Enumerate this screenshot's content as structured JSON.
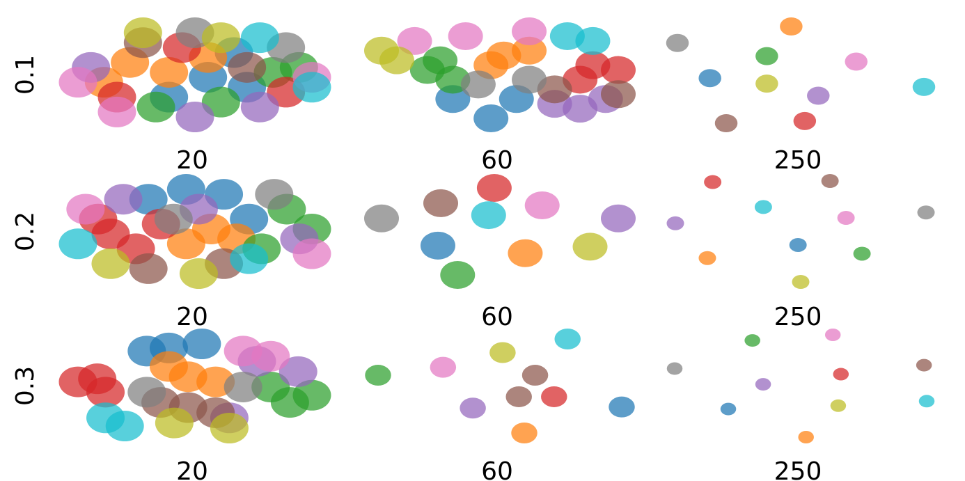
{
  "chart_data": [
    {
      "type": "scatter",
      "ylabel": "0.1",
      "xlabel": "20",
      "marker_size": 22,
      "series": [
        {
          "color": "#1f77b4",
          "x": [
            55,
            70,
            40,
            65
          ],
          "y": [
            50,
            40,
            30,
            75
          ]
        },
        {
          "color": "#ff7f0e",
          "x": [
            25,
            40,
            55,
            15
          ],
          "y": [
            65,
            55,
            70,
            45
          ]
        },
        {
          "color": "#2ca02c",
          "x": [
            80,
            35,
            60,
            90
          ],
          "y": [
            55,
            20,
            25,
            60
          ]
        },
        {
          "color": "#d62728",
          "x": [
            20,
            85,
            45
          ],
          "y": [
            30,
            35,
            80
          ]
        },
        {
          "color": "#9467bd",
          "x": [
            10,
            75,
            50
          ],
          "y": [
            60,
            20,
            10
          ]
        },
        {
          "color": "#8c564b",
          "x": [
            30,
            70
          ],
          "y": [
            85,
            60
          ]
        },
        {
          "color": "#e377c2",
          "x": [
            5,
            20,
            95
          ],
          "y": [
            45,
            15,
            50
          ]
        },
        {
          "color": "#7f7f7f",
          "x": [
            50,
            85
          ],
          "y": [
            95,
            80
          ]
        },
        {
          "color": "#bcbd22",
          "x": [
            30,
            60
          ],
          "y": [
            95,
            90
          ]
        },
        {
          "color": "#17becf",
          "x": [
            75,
            95
          ],
          "y": [
            90,
            40
          ]
        }
      ]
    },
    {
      "type": "scatter",
      "xlabel": "60",
      "marker_size": 20,
      "series": [
        {
          "color": "#1f77b4",
          "x": [
            30,
            45,
            55
          ],
          "y": [
            25,
            5,
            25
          ]
        },
        {
          "color": "#ff7f0e",
          "x": [
            50,
            60,
            45
          ],
          "y": [
            70,
            75,
            60
          ]
        },
        {
          "color": "#2ca02c",
          "x": [
            20,
            30,
            25
          ],
          "y": [
            55,
            45,
            65
          ]
        },
        {
          "color": "#d62728",
          "x": [
            85,
            95,
            80
          ],
          "y": [
            60,
            55,
            45
          ]
        },
        {
          "color": "#9467bd",
          "x": [
            80,
            90,
            70
          ],
          "y": [
            15,
            25,
            20
          ]
        },
        {
          "color": "#8c564b",
          "x": [
            70,
            95
          ],
          "y": [
            35,
            30
          ]
        },
        {
          "color": "#e377c2",
          "x": [
            35,
            60,
            15
          ],
          "y": [
            90,
            95,
            85
          ]
        },
        {
          "color": "#7f7f7f",
          "x": [
            60,
            40
          ],
          "y": [
            45,
            40
          ]
        },
        {
          "color": "#bcbd22",
          "x": [
            2,
            8
          ],
          "y": [
            75,
            65
          ]
        },
        {
          "color": "#17becf",
          "x": [
            75,
            85
          ],
          "y": [
            90,
            85
          ]
        }
      ]
    },
    {
      "type": "scatter",
      "xlabel": "250",
      "marker_size": 13,
      "series": [
        {
          "color": "#1f77b4",
          "x": [
            17
          ],
          "y": [
            46
          ]
        },
        {
          "color": "#ff7f0e",
          "x": [
            47
          ],
          "y": [
            93
          ]
        },
        {
          "color": "#2ca02c",
          "x": [
            38
          ],
          "y": [
            66
          ]
        },
        {
          "color": "#d62728",
          "x": [
            52
          ],
          "y": [
            7
          ]
        },
        {
          "color": "#9467bd",
          "x": [
            57
          ],
          "y": [
            30
          ]
        },
        {
          "color": "#8c564b",
          "x": [
            23
          ],
          "y": [
            5
          ]
        },
        {
          "color": "#e377c2",
          "x": [
            71
          ],
          "y": [
            61
          ]
        },
        {
          "color": "#7f7f7f",
          "x": [
            5
          ],
          "y": [
            78
          ]
        },
        {
          "color": "#bcbd22",
          "x": [
            38
          ],
          "y": [
            41
          ]
        },
        {
          "color": "#17becf",
          "x": [
            96
          ],
          "y": [
            38
          ]
        }
      ]
    },
    {
      "type": "scatter",
      "ylabel": "0.2",
      "xlabel": "20",
      "marker_size": 22,
      "series": [
        {
          "color": "#1f77b4",
          "x": [
            45,
            60,
            30,
            70
          ],
          "y": [
            90,
            85,
            80,
            60
          ]
        },
        {
          "color": "#ff7f0e",
          "x": [
            55,
            65,
            45
          ],
          "y": [
            50,
            40,
            35
          ]
        },
        {
          "color": "#2ca02c",
          "x": [
            85,
            75,
            95
          ],
          "y": [
            70,
            30,
            50
          ]
        },
        {
          "color": "#d62728",
          "x": [
            15,
            25,
            10,
            35
          ],
          "y": [
            45,
            30,
            60,
            55
          ]
        },
        {
          "color": "#9467bd",
          "x": [
            20,
            50,
            90
          ],
          "y": [
            80,
            70,
            40
          ]
        },
        {
          "color": "#8c564b",
          "x": [
            60,
            30
          ],
          "y": [
            15,
            10
          ]
        },
        {
          "color": "#e377c2",
          "x": [
            95,
            5
          ],
          "y": [
            25,
            70
          ]
        },
        {
          "color": "#7f7f7f",
          "x": [
            40,
            80
          ],
          "y": [
            60,
            85
          ]
        },
        {
          "color": "#bcbd22",
          "x": [
            15,
            50
          ],
          "y": [
            15,
            5
          ]
        },
        {
          "color": "#17becf",
          "x": [
            70,
            2
          ],
          "y": [
            20,
            35
          ]
        }
      ]
    },
    {
      "type": "scatter",
      "xlabel": "60",
      "marker_size": 20,
      "series": [
        {
          "color": "#1f77b4",
          "x": [
            26
          ],
          "y": [
            38
          ]
        },
        {
          "color": "#ff7f0e",
          "x": [
            57
          ],
          "y": [
            31
          ]
        },
        {
          "color": "#2ca02c",
          "x": [
            33
          ],
          "y": [
            11
          ]
        },
        {
          "color": "#d62728",
          "x": [
            46
          ],
          "y": [
            91
          ]
        },
        {
          "color": "#9467bd",
          "x": [
            90
          ],
          "y": [
            63
          ]
        },
        {
          "color": "#8c564b",
          "x": [
            27
          ],
          "y": [
            77
          ]
        },
        {
          "color": "#e377c2",
          "x": [
            63
          ],
          "y": [
            75
          ]
        },
        {
          "color": "#7f7f7f",
          "x": [
            6
          ],
          "y": [
            63
          ]
        },
        {
          "color": "#bcbd22",
          "x": [
            80
          ],
          "y": [
            37
          ]
        },
        {
          "color": "#17becf",
          "x": [
            44
          ],
          "y": [
            66
          ]
        }
      ]
    },
    {
      "type": "scatter",
      "xlabel": "250",
      "marker_size": 10,
      "series": [
        {
          "color": "#1f77b4",
          "x": [
            49
          ],
          "y": [
            37
          ]
        },
        {
          "color": "#ff7f0e",
          "x": [
            15
          ],
          "y": [
            25
          ]
        },
        {
          "color": "#2ca02c",
          "x": [
            73
          ],
          "y": [
            29
          ]
        },
        {
          "color": "#d62728",
          "x": [
            17
          ],
          "y": [
            95
          ]
        },
        {
          "color": "#9467bd",
          "x": [
            3
          ],
          "y": [
            57
          ]
        },
        {
          "color": "#8c564b",
          "x": [
            61
          ],
          "y": [
            96
          ]
        },
        {
          "color": "#e377c2",
          "x": [
            67
          ],
          "y": [
            62
          ]
        },
        {
          "color": "#7f7f7f",
          "x": [
            97
          ],
          "y": [
            67
          ]
        },
        {
          "color": "#bcbd22",
          "x": [
            50
          ],
          "y": [
            3
          ]
        },
        {
          "color": "#17becf",
          "x": [
            36
          ],
          "y": [
            72
          ]
        }
      ]
    },
    {
      "type": "scatter",
      "ylabel": "0.3",
      "xlabel": "20",
      "marker_size": 22,
      "series": [
        {
          "color": "#1f77b4",
          "x": [
            38,
            50,
            30
          ],
          "y": [
            88,
            92,
            85
          ]
        },
        {
          "color": "#ff7f0e",
          "x": [
            45,
            55,
            38
          ],
          "y": [
            60,
            55,
            70
          ]
        },
        {
          "color": "#2ca02c",
          "x": [
            90,
            82,
            75
          ],
          "y": [
            42,
            35,
            50
          ]
        },
        {
          "color": "#d62728",
          "x": [
            5,
            12,
            15
          ],
          "y": [
            55,
            58,
            45
          ]
        },
        {
          "color": "#9467bd",
          "x": [
            85,
            70,
            60
          ],
          "y": [
            65,
            75,
            20
          ]
        },
        {
          "color": "#8c564b",
          "x": [
            45,
            35,
            55
          ],
          "y": [
            30,
            35,
            25
          ]
        },
        {
          "color": "#e377c2",
          "x": [
            65,
            75
          ],
          "y": [
            85,
            80
          ]
        },
        {
          "color": "#7f7f7f",
          "x": [
            65,
            30
          ],
          "y": [
            50,
            45
          ]
        },
        {
          "color": "#bcbd22",
          "x": [
            60,
            40
          ],
          "y": [
            10,
            15
          ]
        },
        {
          "color": "#17becf",
          "x": [
            22,
            15
          ],
          "y": [
            12,
            20
          ]
        }
      ]
    },
    {
      "type": "scatter",
      "xlabel": "60",
      "marker_size": 15,
      "series": [
        {
          "color": "#1f77b4",
          "x": [
            95
          ],
          "y": [
            32
          ]
        },
        {
          "color": "#ff7f0e",
          "x": [
            59
          ],
          "y": [
            9
          ]
        },
        {
          "color": "#2ca02c",
          "x": [
            5
          ],
          "y": [
            60
          ]
        },
        {
          "color": "#d62728",
          "x": [
            70
          ],
          "y": [
            41
          ]
        },
        {
          "color": "#9467bd",
          "x": [
            40
          ],
          "y": [
            31
          ]
        },
        {
          "color": "#8c564b",
          "x": [
            63,
            57
          ],
          "y": [
            60,
            41
          ]
        },
        {
          "color": "#e377c2",
          "x": [
            29
          ],
          "y": [
            67
          ]
        },
        {
          "color": "#bcbd22",
          "x": [
            51
          ],
          "y": [
            80
          ]
        },
        {
          "color": "#17becf",
          "x": [
            75
          ],
          "y": [
            92
          ]
        }
      ]
    },
    {
      "type": "scatter",
      "xlabel": "250",
      "marker_size": 9,
      "series": [
        {
          "color": "#1f77b4",
          "x": [
            23
          ],
          "y": [
            30
          ]
        },
        {
          "color": "#ff7f0e",
          "x": [
            52
          ],
          "y": [
            5
          ]
        },
        {
          "color": "#2ca02c",
          "x": [
            32
          ],
          "y": [
            91
          ]
        },
        {
          "color": "#d62728",
          "x": [
            65
          ],
          "y": [
            61
          ]
        },
        {
          "color": "#9467bd",
          "x": [
            36
          ],
          "y": [
            52
          ]
        },
        {
          "color": "#8c564b",
          "x": [
            96
          ],
          "y": [
            69
          ]
        },
        {
          "color": "#e377c2",
          "x": [
            62
          ],
          "y": [
            96
          ]
        },
        {
          "color": "#7f7f7f",
          "x": [
            3
          ],
          "y": [
            66
          ]
        },
        {
          "color": "#bcbd22",
          "x": [
            64
          ],
          "y": [
            33
          ]
        },
        {
          "color": "#17becf",
          "x": [
            97
          ],
          "y": [
            37
          ]
        }
      ]
    }
  ]
}
